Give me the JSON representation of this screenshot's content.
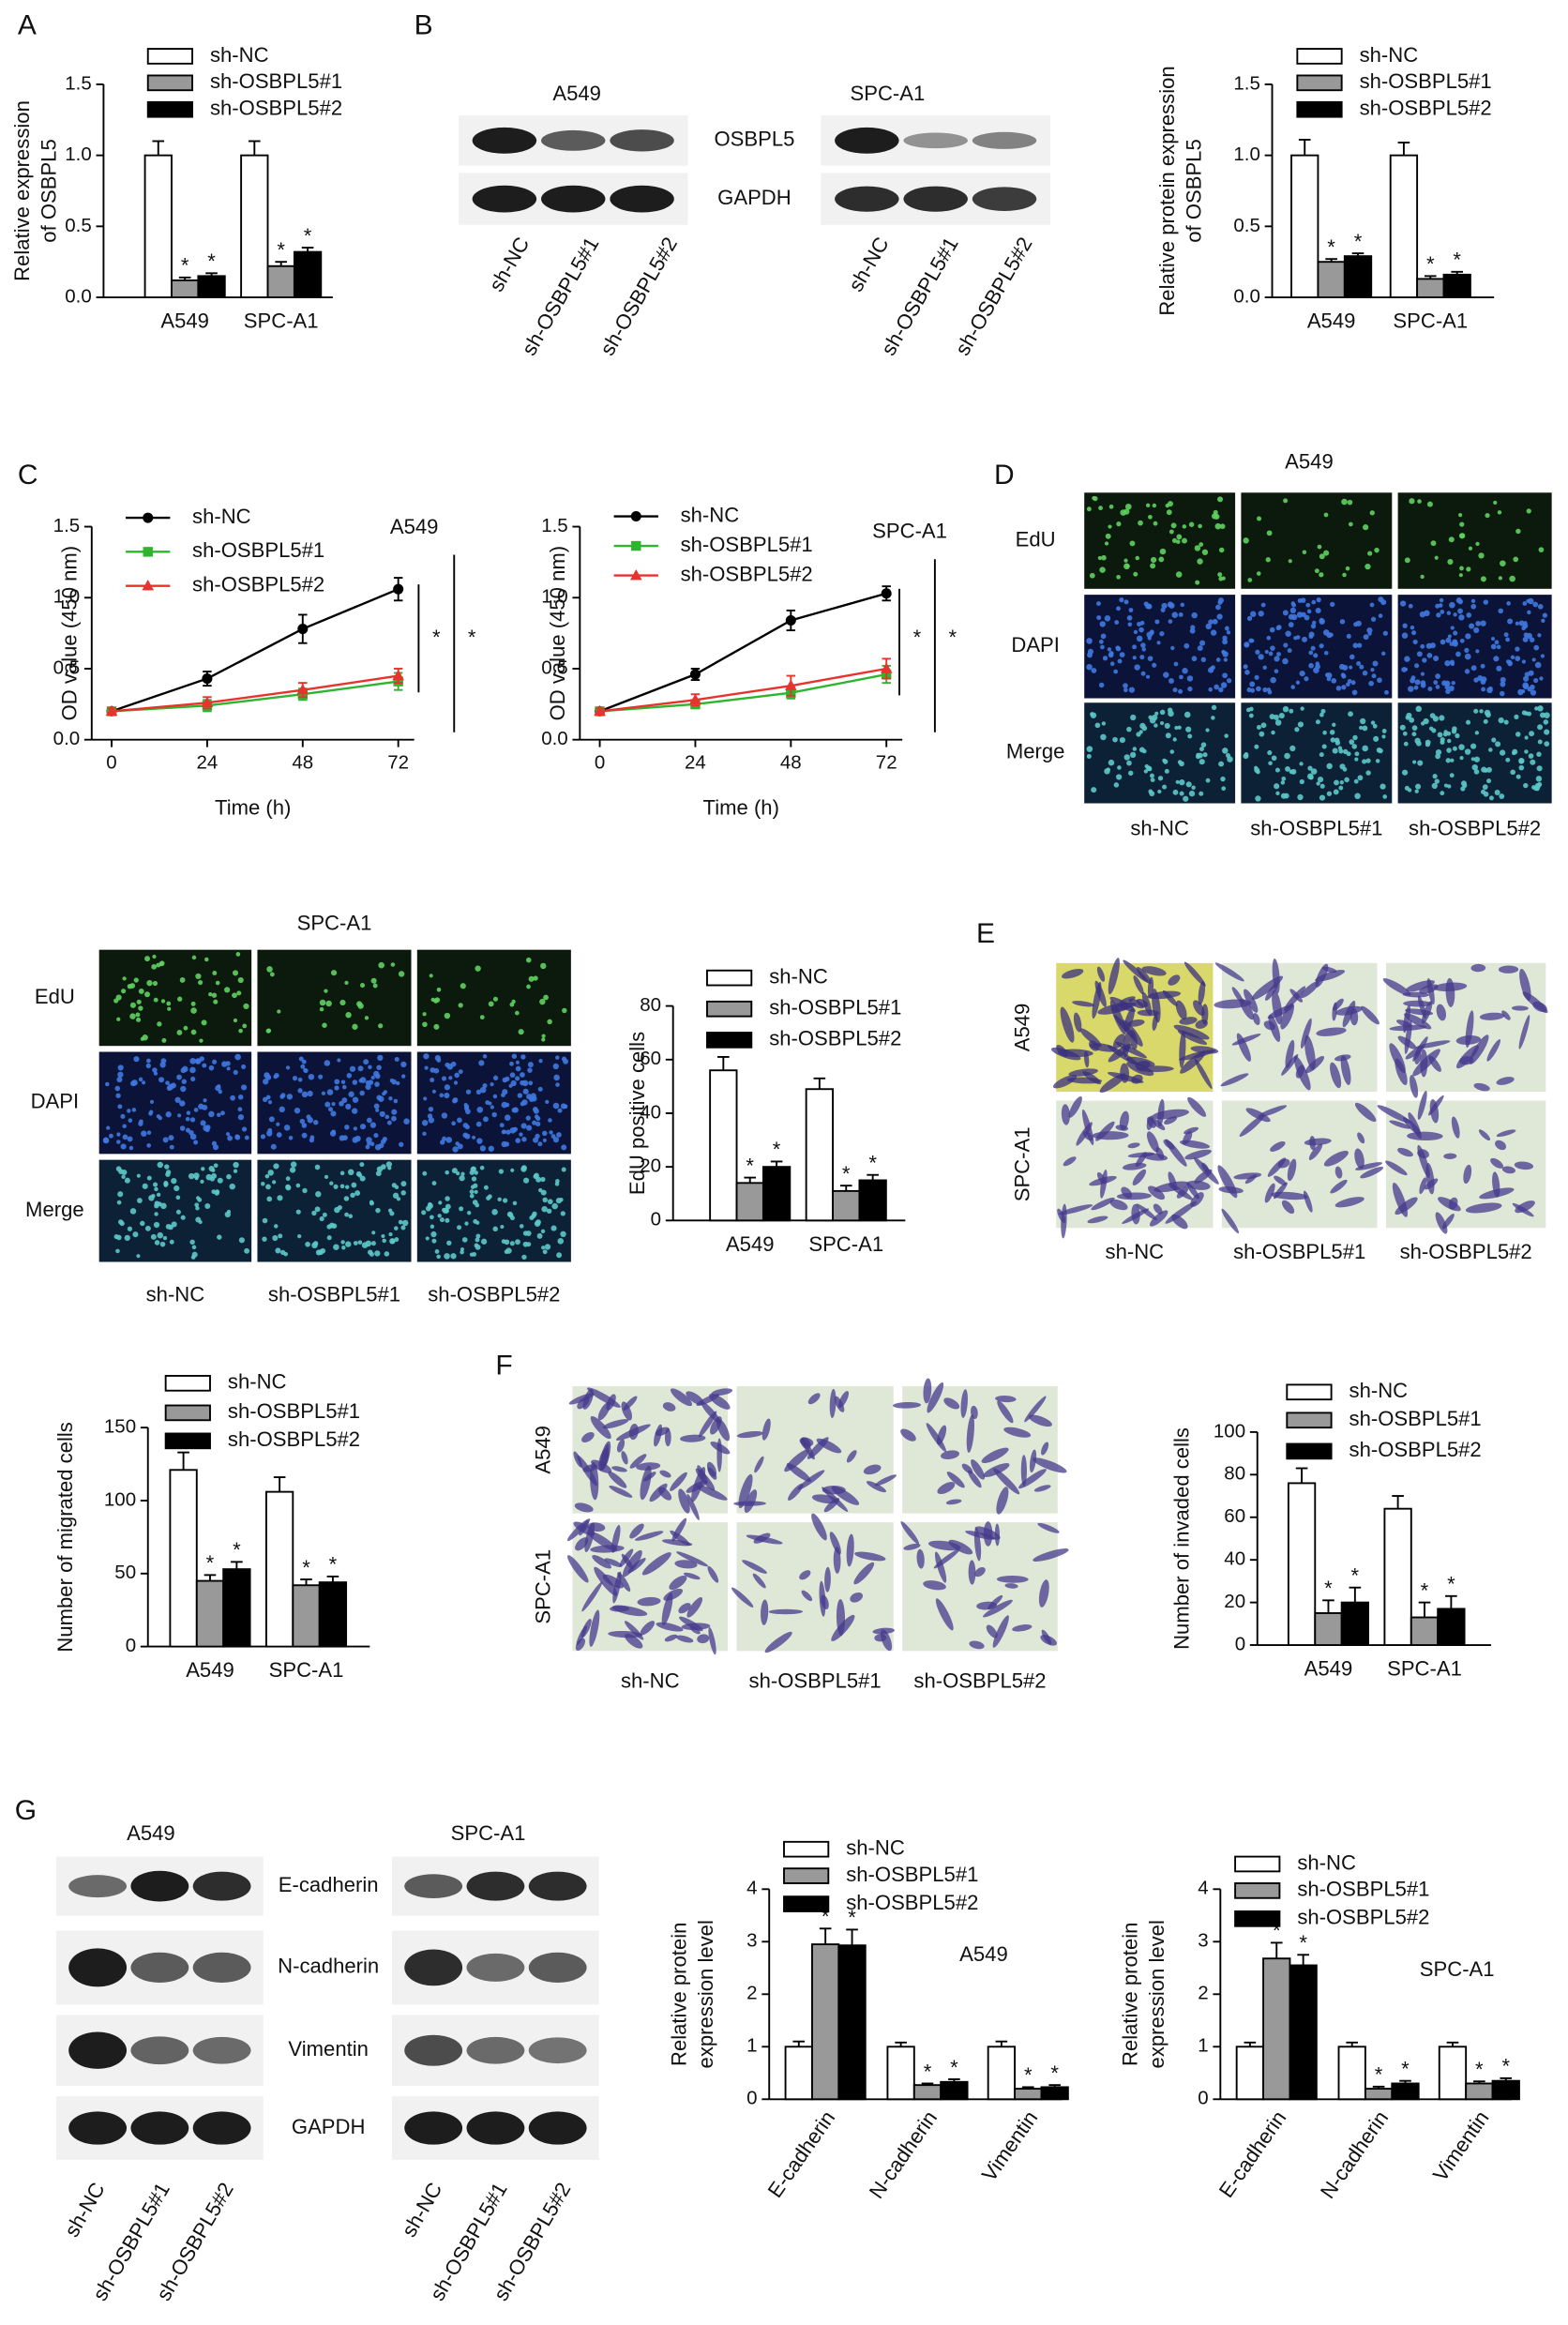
{
  "panel_labels": [
    "A",
    "B",
    "C",
    "D",
    "E",
    "F",
    "G"
  ],
  "blot_b": {
    "titles": [
      "A549",
      "SPC-A1"
    ],
    "rows": [
      "OSBPL5",
      "GAPDH"
    ],
    "lanes": [
      "sh-NC",
      "sh-OSBPL5#1",
      "sh-OSBPL5#2"
    ]
  },
  "edu_a549": {
    "title": "A549",
    "rows": [
      "EdU",
      "DAPI",
      "Merge"
    ],
    "columns": [
      "sh-NC",
      "sh-OSBPL5#1",
      "sh-OSBPL5#2"
    ]
  },
  "edu_spc": {
    "title": "SPC-A1",
    "rows": [
      "EdU",
      "DAPI",
      "Merge"
    ],
    "columns": [
      "sh-NC",
      "sh-OSBPL5#1",
      "sh-OSBPL5#2"
    ]
  },
  "transwell_e": {
    "rows": [
      "A549",
      "SPC-A1"
    ],
    "columns": [
      "sh-NC",
      "sh-OSBPL5#1",
      "sh-OSBPL5#2"
    ]
  },
  "transwell_f": {
    "rows": [
      "A549",
      "SPC-A1"
    ],
    "columns": [
      "sh-NC",
      "sh-OSBPL5#1",
      "sh-OSBPL5#2"
    ]
  },
  "blot_g": {
    "titles": [
      "A549",
      "SPC-A1"
    ],
    "rows": [
      "E-cadherin",
      "N-cadherin",
      "Vimentin",
      "GAPDH"
    ],
    "lanes": [
      "sh-NC",
      "sh-OSBPL5#1",
      "sh-OSBPL5#2"
    ]
  },
  "chart_data": [
    {
      "type": "bar",
      "categories": [
        "A549",
        "SPC-A1"
      ],
      "y_label": [
        "Relative expression",
        "of OSBPL5"
      ],
      "ylim": [
        0,
        1.5
      ],
      "yticks": [
        {
          "value": 0,
          "label": "0.0"
        },
        0.5,
        {
          "value": 1,
          "label": "1.0"
        },
        1.5
      ],
      "series": [
        {
          "name": "sh-NC",
          "color": "#ffffff",
          "values": [
            1.0,
            1.0
          ],
          "errors": [
            0.1,
            0.1
          ]
        },
        {
          "name": "sh-OSBPL5#1",
          "color": "#999999",
          "values": [
            0.12,
            0.22
          ],
          "errors": [
            0.02,
            0.03
          ],
          "significance": [
            "*",
            "*"
          ]
        },
        {
          "name": "sh-OSBPL5#2",
          "color": "#000000",
          "values": [
            0.15,
            0.32
          ],
          "errors": [
            0.02,
            0.03
          ],
          "significance": [
            "*",
            "*"
          ]
        }
      ]
    },
    {
      "type": "bar",
      "categories": [
        "A549",
        "SPC-A1"
      ],
      "y_label": [
        "Relative protein expression",
        "of OSBPL5"
      ],
      "ylim": [
        0,
        1.5
      ],
      "yticks": [
        {
          "value": 0,
          "label": "0.0"
        },
        0.5,
        {
          "value": 1,
          "label": "1.0"
        },
        1.5
      ],
      "series": [
        {
          "name": "sh-NC",
          "color": "#ffffff",
          "values": [
            1.0,
            1.0
          ],
          "errors": [
            0.11,
            0.09
          ]
        },
        {
          "name": "sh-OSBPL5#1",
          "color": "#999999",
          "values": [
            0.25,
            0.13
          ],
          "errors": [
            0.02,
            0.02
          ],
          "significance": [
            "*",
            "*"
          ]
        },
        {
          "name": "sh-OSBPL5#2",
          "color": "#000000",
          "values": [
            0.29,
            0.16
          ],
          "errors": [
            0.02,
            0.02
          ],
          "significance": [
            "*",
            "*"
          ]
        }
      ]
    },
    {
      "type": "line",
      "title": "A549",
      "x": [
        0,
        24,
        48,
        72
      ],
      "xlim": [
        -5,
        76
      ],
      "xticks": [
        0,
        24,
        48,
        72
      ],
      "x_label": "Time (h)",
      "y_label": [
        "OD value (450 nm)"
      ],
      "ylim": [
        0,
        1.5
      ],
      "yticks": [
        {
          "value": 0,
          "label": "0.0"
        },
        0.5,
        {
          "value": 1,
          "label": "1.0"
        },
        1.5
      ],
      "significance": [
        "*",
        "*"
      ],
      "series": [
        {
          "name": "sh-NC",
          "color": "#000000",
          "marker": "circle",
          "values": [
            0.2,
            0.43,
            0.78,
            1.06
          ],
          "errors": [
            0.02,
            0.05,
            0.1,
            0.08
          ]
        },
        {
          "name": "sh-OSBPL5#1",
          "color": "#2db52d",
          "marker": "square",
          "values": [
            0.2,
            0.24,
            0.32,
            0.41
          ],
          "errors": [
            0.02,
            0.04,
            0.04,
            0.06
          ]
        },
        {
          "name": "sh-OSBPL5#2",
          "color": "#e8322e",
          "marker": "triangle",
          "values": [
            0.2,
            0.26,
            0.35,
            0.45
          ],
          "errors": [
            0.02,
            0.04,
            0.05,
            0.05
          ]
        }
      ]
    },
    {
      "type": "line",
      "title": "SPC-A1",
      "x": [
        0,
        24,
        48,
        72
      ],
      "xlim": [
        -5,
        76
      ],
      "xticks": [
        0,
        24,
        48,
        72
      ],
      "x_label": "Time (h)",
      "y_label": [
        "OD value (450 nm)"
      ],
      "ylim": [
        0,
        1.5
      ],
      "yticks": [
        {
          "value": 0,
          "label": "0.0"
        },
        0.5,
        {
          "value": 1,
          "label": "1.0"
        },
        1.5
      ],
      "significance": [
        "*",
        "*"
      ],
      "series": [
        {
          "name": "sh-NC",
          "color": "#000000",
          "marker": "circle",
          "values": [
            0.2,
            0.46,
            0.84,
            1.03
          ],
          "errors": [
            0.02,
            0.04,
            0.07,
            0.05
          ]
        },
        {
          "name": "sh-OSBPL5#1",
          "color": "#2db52d",
          "marker": "square",
          "values": [
            0.2,
            0.25,
            0.33,
            0.46
          ],
          "errors": [
            0.02,
            0.03,
            0.04,
            0.06
          ]
        },
        {
          "name": "sh-OSBPL5#2",
          "color": "#e8322e",
          "marker": "triangle",
          "values": [
            0.2,
            0.28,
            0.38,
            0.5
          ],
          "errors": [
            0.02,
            0.04,
            0.07,
            0.07
          ]
        }
      ]
    },
    {
      "type": "bar",
      "categories": [
        "A549",
        "SPC-A1"
      ],
      "y_label": [
        "EdU positive cells"
      ],
      "ylim": [
        0,
        80
      ],
      "yticks": [
        0,
        20,
        40,
        60,
        80
      ],
      "series": [
        {
          "name": "sh-NC",
          "color": "#ffffff",
          "values": [
            56,
            49
          ],
          "errors": [
            5,
            4
          ]
        },
        {
          "name": "sh-OSBPL5#1",
          "color": "#999999",
          "values": [
            14,
            11
          ],
          "errors": [
            2,
            2
          ],
          "significance": [
            "*",
            "*"
          ]
        },
        {
          "name": "sh-OSBPL5#2",
          "color": "#000000",
          "values": [
            20,
            15
          ],
          "errors": [
            2,
            2
          ],
          "significance": [
            "*",
            "*"
          ]
        }
      ]
    },
    {
      "type": "bar",
      "categories": [
        "A549",
        "SPC-A1"
      ],
      "y_label": [
        "Number of migrated cells"
      ],
      "ylim": [
        0,
        150
      ],
      "yticks": [
        0,
        50,
        100,
        150
      ],
      "series": [
        {
          "name": "sh-NC",
          "color": "#ffffff",
          "values": [
            121,
            106
          ],
          "errors": [
            12,
            10
          ]
        },
        {
          "name": "sh-OSBPL5#1",
          "color": "#999999",
          "values": [
            45,
            42
          ],
          "errors": [
            4,
            4
          ],
          "significance": [
            "*",
            "*"
          ]
        },
        {
          "name": "sh-OSBPL5#2",
          "color": "#000000",
          "values": [
            53,
            44
          ],
          "errors": [
            5,
            4
          ],
          "significance": [
            "*",
            "*"
          ]
        }
      ]
    },
    {
      "type": "bar",
      "categories": [
        "A549",
        "SPC-A1"
      ],
      "y_label": [
        "Number of invaded cells"
      ],
      "ylim": [
        0,
        100
      ],
      "yticks": [
        0,
        20,
        40,
        60,
        80,
        100
      ],
      "series": [
        {
          "name": "sh-NC",
          "color": "#ffffff",
          "values": [
            76,
            64
          ],
          "errors": [
            7,
            6
          ]
        },
        {
          "name": "sh-OSBPL5#1",
          "color": "#999999",
          "values": [
            15,
            13
          ],
          "errors": [
            6,
            7
          ],
          "significance": [
            "*",
            "*"
          ]
        },
        {
          "name": "sh-OSBPL5#2",
          "color": "#000000",
          "values": [
            20,
            17
          ],
          "errors": [
            7,
            6
          ],
          "significance": [
            "*",
            "*"
          ]
        }
      ]
    },
    {
      "type": "bar",
      "title": "A549",
      "categories": [
        "E-cadherin",
        "N-cadherin",
        "Vimentin"
      ],
      "y_label": [
        "Relative protein",
        "expression level"
      ],
      "ylim": [
        0,
        4
      ],
      "yticks": [
        0,
        1,
        2,
        3,
        4
      ],
      "series": [
        {
          "name": "sh-NC",
          "color": "#ffffff",
          "values": [
            1,
            1,
            1
          ],
          "errors": [
            0.1,
            0.08,
            0.1
          ]
        },
        {
          "name": "sh-OSBPL5#1",
          "color": "#999999",
          "values": [
            2.95,
            0.27,
            0.2
          ],
          "errors": [
            0.3,
            0.03,
            0.03
          ],
          "significance": [
            "*",
            "*",
            "*"
          ]
        },
        {
          "name": "sh-OSBPL5#2",
          "color": "#000000",
          "values": [
            2.93,
            0.33,
            0.23
          ],
          "errors": [
            0.3,
            0.05,
            0.04
          ],
          "significance": [
            "*",
            "*",
            "*"
          ]
        }
      ]
    },
    {
      "type": "bar",
      "title": "SPC-A1",
      "categories": [
        "E-cadherin",
        "N-cadherin",
        "Vimentin"
      ],
      "y_label": [
        "Relative protein",
        "expression level"
      ],
      "ylim": [
        0,
        4
      ],
      "yticks": [
        0,
        1,
        2,
        3,
        4
      ],
      "series": [
        {
          "name": "sh-NC",
          "color": "#ffffff",
          "values": [
            1,
            1,
            1
          ],
          "errors": [
            0.08,
            0.08,
            0.08
          ]
        },
        {
          "name": "sh-OSBPL5#1",
          "color": "#999999",
          "values": [
            2.68,
            0.2,
            0.3
          ],
          "errors": [
            0.3,
            0.04,
            0.04
          ],
          "significance": [
            "*",
            "*",
            "*"
          ]
        },
        {
          "name": "sh-OSBPL5#2",
          "color": "#000000",
          "values": [
            2.55,
            0.3,
            0.35
          ],
          "errors": [
            0.2,
            0.05,
            0.05
          ],
          "significance": [
            "*",
            "*",
            "*"
          ]
        }
      ]
    }
  ]
}
